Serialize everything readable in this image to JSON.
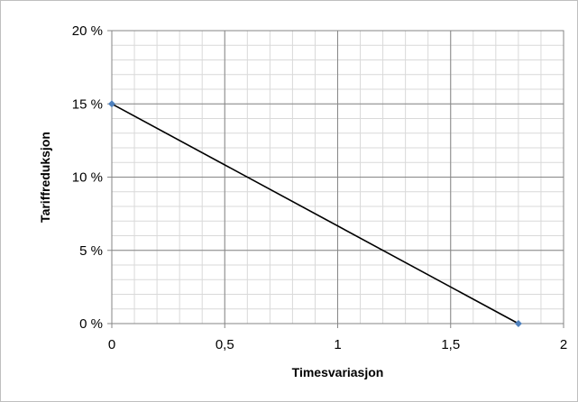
{
  "chart_data": {
    "type": "line",
    "title": "",
    "xlabel": "Timesvariasjon",
    "ylabel": "Tariffreduksjon",
    "xlim": [
      0,
      2
    ],
    "ylim": [
      0,
      20
    ],
    "x_ticks": [
      {
        "value": 0,
        "label": "0"
      },
      {
        "value": 0.5,
        "label": "0,5"
      },
      {
        "value": 1,
        "label": "1"
      },
      {
        "value": 1.5,
        "label": "1,5"
      },
      {
        "value": 2,
        "label": "2"
      }
    ],
    "y_ticks": [
      {
        "value": 0,
        "label": "0 %"
      },
      {
        "value": 5,
        "label": "5 %"
      },
      {
        "value": 10,
        "label": "10 %"
      },
      {
        "value": 15,
        "label": "15 %"
      },
      {
        "value": 20,
        "label": "20 %"
      }
    ],
    "minor_x_step": 0.1,
    "minor_y_step": 1,
    "grid": true,
    "legend": "none",
    "series": [
      {
        "x": [
          0,
          1.8
        ],
        "y": [
          15,
          0
        ],
        "line_color": "#000000",
        "marker_color": "#4f81bd",
        "marker": "diamond"
      }
    ]
  }
}
